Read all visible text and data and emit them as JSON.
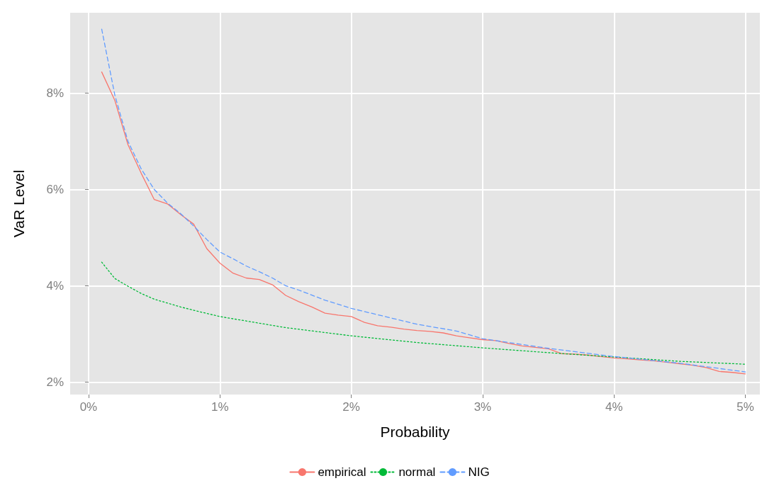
{
  "chart_data": {
    "type": "line",
    "xlabel": "Probability",
    "ylabel": "VaR Level",
    "xlim": [
      -0.14,
      5.11
    ],
    "ylim": [
      1.74,
      9.67
    ],
    "xticks": [
      {
        "value": 0,
        "label": "0%"
      },
      {
        "value": 1,
        "label": "1%"
      },
      {
        "value": 2,
        "label": "2%"
      },
      {
        "value": 3,
        "label": "3%"
      },
      {
        "value": 4,
        "label": "4%"
      },
      {
        "value": 5,
        "label": "5%"
      }
    ],
    "yticks": [
      {
        "value": 2,
        "label": "2%"
      },
      {
        "value": 4,
        "label": "4%"
      },
      {
        "value": 6,
        "label": "6%"
      },
      {
        "value": 8,
        "label": "8%"
      }
    ],
    "grid": true,
    "legend": "bottom",
    "marker": "none",
    "series": [
      {
        "name": "empirical",
        "color": "#f8766d",
        "line_style": "solid",
        "x": [
          0.1,
          0.2,
          0.3,
          0.4,
          0.5,
          0.6,
          0.7,
          0.8,
          0.9,
          1.0,
          1.1,
          1.2,
          1.3,
          1.4,
          1.5,
          1.6,
          1.7,
          1.8,
          1.9,
          2.0,
          2.1,
          2.2,
          2.3,
          2.4,
          2.5,
          2.6,
          2.7,
          2.8,
          2.9,
          3.0,
          3.1,
          3.2,
          3.3,
          3.4,
          3.5,
          3.6,
          3.7,
          3.8,
          3.9,
          4.0,
          4.1,
          4.2,
          4.3,
          4.4,
          4.5,
          4.6,
          4.7,
          4.8,
          4.9,
          5.0
        ],
        "values": [
          8.44,
          7.85,
          6.93,
          6.34,
          5.79,
          5.7,
          5.48,
          5.28,
          4.77,
          4.47,
          4.26,
          4.16,
          4.13,
          4.02,
          3.8,
          3.67,
          3.56,
          3.43,
          3.39,
          3.36,
          3.24,
          3.17,
          3.14,
          3.1,
          3.07,
          3.05,
          3.02,
          2.96,
          2.92,
          2.88,
          2.86,
          2.8,
          2.75,
          2.72,
          2.69,
          2.59,
          2.58,
          2.56,
          2.53,
          2.5,
          2.48,
          2.46,
          2.44,
          2.41,
          2.38,
          2.35,
          2.3,
          2.22,
          2.2,
          2.17
        ]
      },
      {
        "name": "normal",
        "color": "#00ba38",
        "line_style": "dotted",
        "x": [
          0.1,
          0.2,
          0.3,
          0.4,
          0.5,
          0.7,
          0.8,
          1.0,
          1.5,
          2.0,
          2.5,
          3.0,
          3.5,
          4.0,
          4.5,
          5.0
        ],
        "values": [
          4.49,
          4.15,
          3.99,
          3.84,
          3.72,
          3.56,
          3.49,
          3.36,
          3.13,
          2.96,
          2.82,
          2.71,
          2.61,
          2.52,
          2.43,
          2.37
        ]
      },
      {
        "name": "NIG",
        "color": "#619cff",
        "line_style": "dashed",
        "x": [
          0.1,
          0.2,
          0.3,
          0.4,
          0.5,
          0.6,
          0.7,
          0.8,
          0.9,
          1.0,
          1.1,
          1.2,
          1.3,
          1.4,
          1.5,
          1.6,
          1.8,
          2.0,
          2.5,
          2.8,
          3.0,
          3.5,
          4.0,
          4.5,
          5.0
        ],
        "values": [
          9.33,
          7.96,
          7.0,
          6.43,
          6.0,
          5.72,
          5.5,
          5.24,
          4.96,
          4.7,
          4.56,
          4.41,
          4.29,
          4.16,
          4.0,
          3.91,
          3.7,
          3.53,
          3.2,
          3.06,
          2.9,
          2.7,
          2.53,
          2.39,
          2.21
        ]
      }
    ]
  }
}
